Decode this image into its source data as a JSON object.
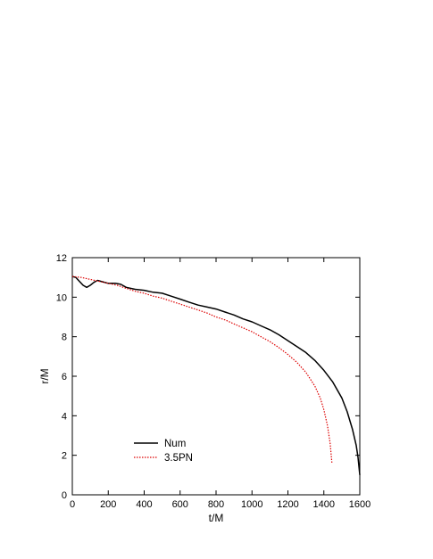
{
  "chart_data": {
    "type": "line",
    "title": "",
    "xlabel": "t/M",
    "ylabel": "r/M",
    "xlim": [
      0,
      1600
    ],
    "ylim": [
      0,
      12
    ],
    "x_ticks": [
      0,
      200,
      400,
      600,
      800,
      1000,
      1200,
      1400,
      1600
    ],
    "y_ticks": [
      0,
      2,
      4,
      6,
      8,
      10,
      12
    ],
    "grid": false,
    "legend_position": "bottom-left",
    "series": [
      {
        "name": "Num",
        "color": "#000000",
        "style": "solid",
        "points": [
          [
            0,
            11.05
          ],
          [
            20,
            11.0
          ],
          [
            40,
            10.8
          ],
          [
            60,
            10.6
          ],
          [
            80,
            10.5
          ],
          [
            100,
            10.6
          ],
          [
            120,
            10.75
          ],
          [
            140,
            10.85
          ],
          [
            160,
            10.8
          ],
          [
            200,
            10.7
          ],
          [
            240,
            10.7
          ],
          [
            270,
            10.65
          ],
          [
            300,
            10.5
          ],
          [
            350,
            10.4
          ],
          [
            400,
            10.35
          ],
          [
            450,
            10.25
          ],
          [
            500,
            10.2
          ],
          [
            550,
            10.05
          ],
          [
            600,
            9.9
          ],
          [
            650,
            9.75
          ],
          [
            700,
            9.6
          ],
          [
            750,
            9.5
          ],
          [
            800,
            9.4
          ],
          [
            850,
            9.25
          ],
          [
            900,
            9.1
          ],
          [
            950,
            8.9
          ],
          [
            1000,
            8.75
          ],
          [
            1050,
            8.55
          ],
          [
            1100,
            8.35
          ],
          [
            1150,
            8.1
          ],
          [
            1200,
            7.8
          ],
          [
            1250,
            7.5
          ],
          [
            1300,
            7.2
          ],
          [
            1350,
            6.8
          ],
          [
            1400,
            6.3
          ],
          [
            1450,
            5.7
          ],
          [
            1500,
            4.9
          ],
          [
            1530,
            4.2
          ],
          [
            1560,
            3.3
          ],
          [
            1580,
            2.5
          ],
          [
            1590,
            1.9
          ],
          [
            1600,
            1.0
          ]
        ]
      },
      {
        "name": "3.5PN",
        "color": "#dd0000",
        "style": "dotted",
        "points": [
          [
            0,
            11.05
          ],
          [
            50,
            11.0
          ],
          [
            100,
            10.9
          ],
          [
            150,
            10.8
          ],
          [
            200,
            10.7
          ],
          [
            250,
            10.6
          ],
          [
            300,
            10.45
          ],
          [
            350,
            10.3
          ],
          [
            400,
            10.2
          ],
          [
            450,
            10.05
          ],
          [
            500,
            9.95
          ],
          [
            550,
            9.8
          ],
          [
            600,
            9.65
          ],
          [
            650,
            9.5
          ],
          [
            700,
            9.35
          ],
          [
            750,
            9.2
          ],
          [
            800,
            9.0
          ],
          [
            850,
            8.85
          ],
          [
            900,
            8.65
          ],
          [
            950,
            8.45
          ],
          [
            1000,
            8.25
          ],
          [
            1050,
            8.0
          ],
          [
            1100,
            7.75
          ],
          [
            1150,
            7.45
          ],
          [
            1200,
            7.1
          ],
          [
            1250,
            6.7
          ],
          [
            1300,
            6.2
          ],
          [
            1350,
            5.5
          ],
          [
            1380,
            4.9
          ],
          [
            1400,
            4.3
          ],
          [
            1420,
            3.5
          ],
          [
            1435,
            2.6
          ],
          [
            1440,
            2.1
          ],
          [
            1445,
            1.6
          ]
        ]
      }
    ]
  }
}
